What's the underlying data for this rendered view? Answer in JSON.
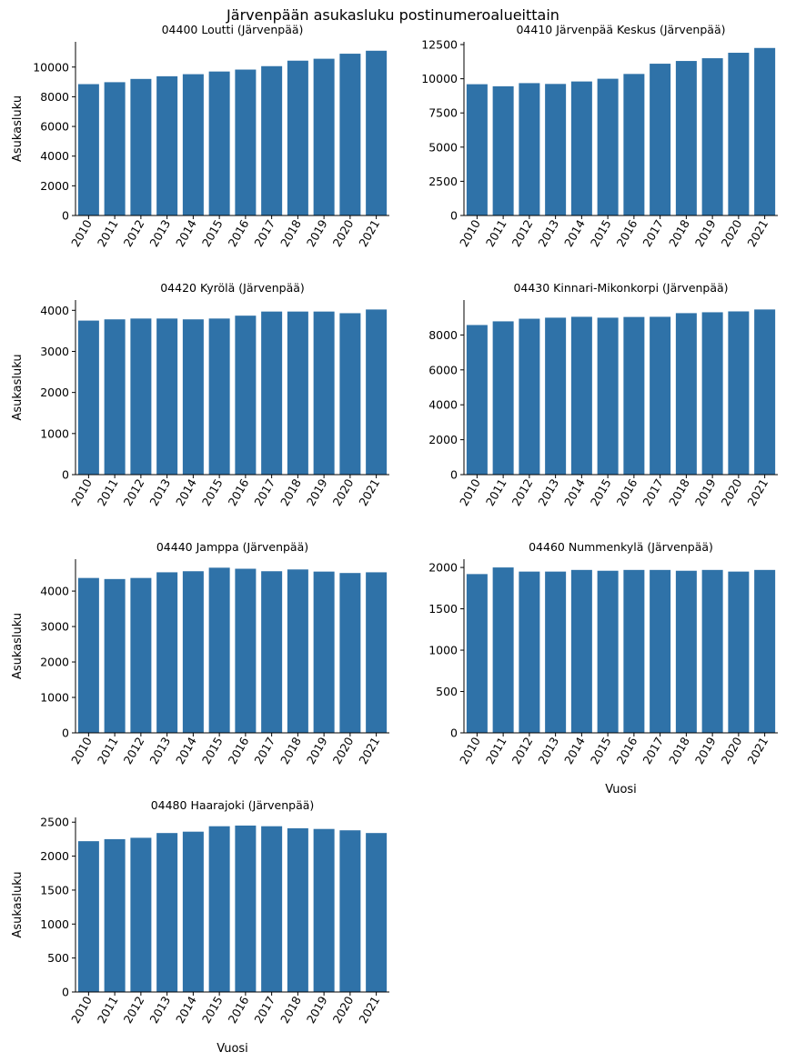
{
  "figure": {
    "title": "Järvenpään asukasluku postinumeroalueittain",
    "bar_color": "#2f72a8"
  },
  "chart_data": [
    {
      "type": "bar",
      "title": "04400  Loutti (Järvenpää)",
      "categories": [
        "2010",
        "2011",
        "2012",
        "2013",
        "2014",
        "2015",
        "2016",
        "2017",
        "2018",
        "2019",
        "2020",
        "2021"
      ],
      "values": [
        8850,
        8980,
        9200,
        9380,
        9520,
        9700,
        9830,
        10060,
        10430,
        10560,
        10900,
        11100
      ],
      "ylabel": "Asukasluku",
      "xlabel": "",
      "ylim": [
        0,
        11700
      ],
      "yticks": [
        0,
        2000,
        4000,
        6000,
        8000,
        10000
      ]
    },
    {
      "type": "bar",
      "title": "04410  Järvenpää Keskus (Järvenpää)",
      "categories": [
        "2010",
        "2011",
        "2012",
        "2013",
        "2014",
        "2015",
        "2016",
        "2017",
        "2018",
        "2019",
        "2020",
        "2021"
      ],
      "values": [
        9600,
        9450,
        9680,
        9620,
        9800,
        10000,
        10350,
        11100,
        11300,
        11500,
        11900,
        12250
      ],
      "ylabel": "",
      "xlabel": "",
      "ylim": [
        0,
        12700
      ],
      "yticks": [
        0,
        2500,
        5000,
        7500,
        10000,
        12500
      ]
    },
    {
      "type": "bar",
      "title": "04420  Kyrölä (Järvenpää)",
      "categories": [
        "2010",
        "2011",
        "2012",
        "2013",
        "2014",
        "2015",
        "2016",
        "2017",
        "2018",
        "2019",
        "2020",
        "2021"
      ],
      "values": [
        3750,
        3780,
        3800,
        3800,
        3780,
        3800,
        3870,
        3970,
        3970,
        3970,
        3930,
        4020
      ],
      "ylabel": "Asukasluku",
      "xlabel": "",
      "ylim": [
        0,
        4250
      ],
      "yticks": [
        0,
        1000,
        2000,
        3000,
        4000
      ]
    },
    {
      "type": "bar",
      "title": "04430  Kinnari-Mikonkorpi (Järvenpää)",
      "categories": [
        "2010",
        "2011",
        "2012",
        "2013",
        "2014",
        "2015",
        "2016",
        "2017",
        "2018",
        "2019",
        "2020",
        "2021"
      ],
      "values": [
        8570,
        8780,
        8930,
        8990,
        9040,
        8990,
        9030,
        9040,
        9250,
        9300,
        9350,
        9460
      ],
      "ylabel": "",
      "xlabel": "",
      "ylim": [
        0,
        10000
      ],
      "yticks": [
        0,
        2000,
        4000,
        6000,
        8000
      ]
    },
    {
      "type": "bar",
      "title": "04440  Jamppa (Järvenpää)",
      "categories": [
        "2010",
        "2011",
        "2012",
        "2013",
        "2014",
        "2015",
        "2016",
        "2017",
        "2018",
        "2019",
        "2020",
        "2021"
      ],
      "values": [
        4370,
        4340,
        4370,
        4530,
        4560,
        4660,
        4630,
        4560,
        4610,
        4550,
        4510,
        4530
      ],
      "ylabel": "Asukasluku",
      "xlabel": "",
      "ylim": [
        0,
        4900
      ],
      "yticks": [
        0,
        1000,
        2000,
        3000,
        4000
      ]
    },
    {
      "type": "bar",
      "title": "04460  Nummenkylä (Järvenpää)",
      "categories": [
        "2010",
        "2011",
        "2012",
        "2013",
        "2014",
        "2015",
        "2016",
        "2017",
        "2018",
        "2019",
        "2020",
        "2021"
      ],
      "values": [
        1920,
        2000,
        1950,
        1950,
        1970,
        1960,
        1970,
        1970,
        1960,
        1970,
        1950,
        1970
      ],
      "ylabel": "",
      "xlabel": "Vuosi",
      "ylim": [
        0,
        2100
      ],
      "yticks": [
        0,
        500,
        1000,
        1500,
        2000
      ]
    },
    {
      "type": "bar",
      "title": "04480  Haarajoki (Järvenpää)",
      "categories": [
        "2010",
        "2011",
        "2012",
        "2013",
        "2014",
        "2015",
        "2016",
        "2017",
        "2018",
        "2019",
        "2020",
        "2021"
      ],
      "values": [
        2220,
        2250,
        2270,
        2340,
        2360,
        2440,
        2450,
        2440,
        2410,
        2400,
        2380,
        2340
      ],
      "ylabel": "Asukasluku",
      "xlabel": "Vuosi",
      "ylim": [
        0,
        2570
      ],
      "yticks": [
        0,
        500,
        1000,
        1500,
        2000,
        2500
      ]
    }
  ]
}
